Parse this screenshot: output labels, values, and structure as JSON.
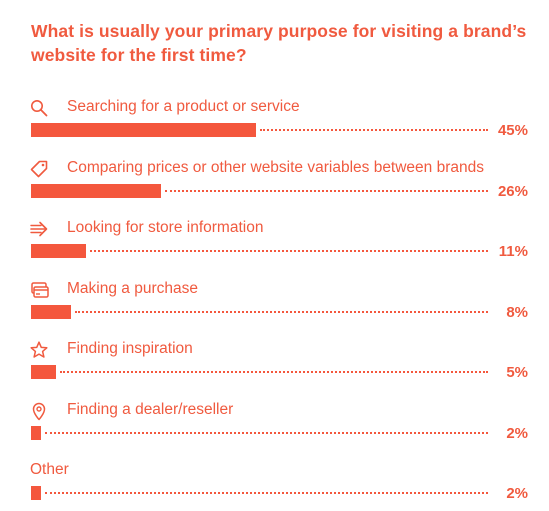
{
  "title": "What is usually your primary purpose for visiting a brand’s website for the first time?",
  "colors": {
    "accent": "#f4573d",
    "text": "#f05a3f",
    "background": "#ffffff"
  },
  "chart_data": {
    "type": "bar",
    "orientation": "horizontal",
    "title": "What is usually your primary purpose for visiting a brand’s website for the first time?",
    "unit": "%",
    "xlim": [
      0,
      100
    ],
    "categories": [
      "Searching for a product or service",
      "Comparing prices or other website variables between brands",
      "Looking for store information",
      "Making a purchase",
      "Finding inspiration",
      "Finding a dealer/reseller",
      "Other"
    ],
    "values": [
      45,
      26,
      11,
      8,
      5,
      2,
      2
    ],
    "value_labels": [
      "45%",
      "26%",
      "11%",
      "8%",
      "5%",
      "2%",
      "2%"
    ],
    "icons": [
      "search-icon",
      "price-tag-icon",
      "arrow-right-icon",
      "credit-card-icon",
      "star-icon",
      "location-pin-icon",
      null
    ]
  }
}
